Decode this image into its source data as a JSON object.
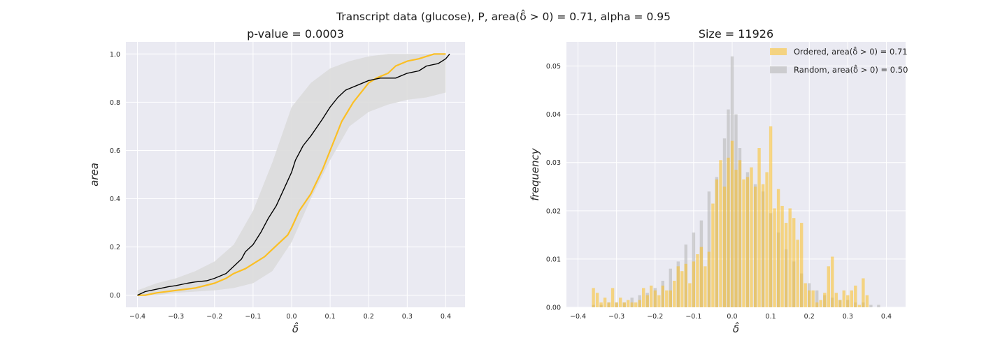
{
  "figure": {
    "suptitle": "Transcript data (glucose), P, area(δ̂ > 0) = 0.71, alpha = 0.95"
  },
  "colors": {
    "background": "#eaeaf2",
    "grid": "#ffffff",
    "ordered": "#fbbf24",
    "random": "#b8b8b8",
    "band": "#dcdcdc",
    "median_line": "#000000"
  },
  "chart_data": [
    {
      "type": "line",
      "title": "p-value = 0.0003",
      "xlabel": "δ̂",
      "ylabel": "area",
      "xlim": [
        -0.43,
        0.45
      ],
      "ylim": [
        -0.05,
        1.05
      ],
      "grid": true,
      "xticks": [
        -0.4,
        -0.3,
        -0.2,
        -0.1,
        0.0,
        0.1,
        0.2,
        0.3,
        0.4
      ],
      "xtick_labels": [
        "−0.4",
        "−0.3",
        "−0.2",
        "−0.1",
        "0.0",
        "0.1",
        "0.2",
        "0.3",
        "0.4"
      ],
      "yticks": [
        0.0,
        0.2,
        0.4,
        0.6,
        0.8,
        1.0
      ],
      "ytick_labels": [
        "0.0",
        "0.2",
        "0.4",
        "0.6",
        "0.8",
        "1.0"
      ],
      "band": {
        "x": [
          -0.4,
          -0.35,
          -0.3,
          -0.25,
          -0.2,
          -0.15,
          -0.1,
          -0.05,
          0.0,
          0.05,
          0.1,
          0.15,
          0.2,
          0.25,
          0.3,
          0.35,
          0.4
        ],
        "upper": [
          0.02,
          0.05,
          0.07,
          0.1,
          0.14,
          0.21,
          0.35,
          0.55,
          0.78,
          0.88,
          0.94,
          0.97,
          0.99,
          1.0,
          1.0,
          1.0,
          1.0
        ],
        "lower": [
          0.0,
          0.0,
          0.01,
          0.015,
          0.02,
          0.03,
          0.05,
          0.1,
          0.22,
          0.4,
          0.56,
          0.7,
          0.76,
          0.79,
          0.81,
          0.82,
          0.84
        ]
      },
      "series": [
        {
          "name": "",
          "color": "#fbbf24",
          "x": [
            -0.4,
            -0.38,
            -0.35,
            -0.3,
            -0.25,
            -0.2,
            -0.17,
            -0.15,
            -0.12,
            -0.1,
            -0.07,
            -0.05,
            -0.03,
            -0.01,
            0.0,
            0.02,
            0.05,
            0.08,
            0.1,
            0.13,
            0.16,
            0.2,
            0.22,
            0.25,
            0.27,
            0.3,
            0.33,
            0.35,
            0.37,
            0.4
          ],
          "y": [
            0.0,
            0.0,
            0.01,
            0.02,
            0.03,
            0.05,
            0.07,
            0.09,
            0.11,
            0.13,
            0.16,
            0.19,
            0.22,
            0.25,
            0.28,
            0.35,
            0.42,
            0.52,
            0.6,
            0.72,
            0.8,
            0.88,
            0.9,
            0.92,
            0.95,
            0.97,
            0.98,
            0.99,
            1.0,
            1.0
          ]
        },
        {
          "name": "",
          "color": "#000000",
          "x": [
            -0.4,
            -0.38,
            -0.35,
            -0.32,
            -0.3,
            -0.27,
            -0.25,
            -0.22,
            -0.2,
            -0.17,
            -0.15,
            -0.13,
            -0.12,
            -0.1,
            -0.08,
            -0.06,
            -0.04,
            -0.02,
            0.0,
            0.01,
            0.03,
            0.05,
            0.08,
            0.1,
            0.12,
            0.14,
            0.17,
            0.2,
            0.23,
            0.27,
            0.3,
            0.33,
            0.35,
            0.38,
            0.4,
            0.41
          ],
          "y": [
            0.0,
            0.015,
            0.025,
            0.035,
            0.04,
            0.05,
            0.055,
            0.06,
            0.07,
            0.09,
            0.12,
            0.15,
            0.18,
            0.21,
            0.26,
            0.32,
            0.37,
            0.44,
            0.51,
            0.56,
            0.62,
            0.66,
            0.73,
            0.78,
            0.82,
            0.85,
            0.87,
            0.89,
            0.9,
            0.9,
            0.92,
            0.93,
            0.95,
            0.96,
            0.98,
            1.0
          ]
        }
      ]
    },
    {
      "type": "bar",
      "title": "Size = 11926",
      "xlabel": "δ̂",
      "ylabel": "frequency",
      "xlim": [
        -0.43,
        0.45
      ],
      "ylim": [
        0.0,
        0.055
      ],
      "grid": true,
      "legend_position": "top-right",
      "xticks": [
        -0.4,
        -0.3,
        -0.2,
        -0.1,
        0.0,
        0.1,
        0.2,
        0.3,
        0.4
      ],
      "xtick_labels": [
        "−0.4",
        "−0.3",
        "−0.2",
        "−0.1",
        "0.0",
        "0.1",
        "0.2",
        "0.3",
        "0.4"
      ],
      "yticks": [
        0.0,
        0.01,
        0.02,
        0.03,
        0.04,
        0.05
      ],
      "ytick_labels": [
        "0.00",
        "0.01",
        "0.02",
        "0.03",
        "0.04",
        "0.05"
      ],
      "bin_width": 0.008,
      "series": [
        {
          "name": "Ordered, area(δ̂ > 0) = 0.71",
          "color": "#fbbf24",
          "x": [
            -0.36,
            -0.35,
            -0.34,
            -0.33,
            -0.32,
            -0.31,
            -0.3,
            -0.29,
            -0.28,
            -0.27,
            -0.26,
            -0.25,
            -0.24,
            -0.23,
            -0.22,
            -0.21,
            -0.2,
            -0.19,
            -0.18,
            -0.17,
            -0.16,
            -0.15,
            -0.14,
            -0.13,
            -0.12,
            -0.11,
            -0.1,
            -0.09,
            -0.08,
            -0.07,
            -0.06,
            -0.05,
            -0.04,
            -0.03,
            -0.02,
            -0.01,
            0.0,
            0.01,
            0.02,
            0.03,
            0.04,
            0.05,
            0.06,
            0.07,
            0.08,
            0.09,
            0.1,
            0.11,
            0.12,
            0.13,
            0.14,
            0.15,
            0.16,
            0.17,
            0.18,
            0.19,
            0.2,
            0.21,
            0.22,
            0.23,
            0.24,
            0.25,
            0.26,
            0.27,
            0.28,
            0.29,
            0.3,
            0.31,
            0.32,
            0.33,
            0.34,
            0.35
          ],
          "values": [
            0.004,
            0.003,
            0.001,
            0.002,
            0.001,
            0.004,
            0.001,
            0.002,
            0.001,
            0.0015,
            0.001,
            0.001,
            0.0015,
            0.004,
            0.0025,
            0.0045,
            0.0035,
            0.0025,
            0.0045,
            0.0035,
            0.0035,
            0.0055,
            0.0085,
            0.0075,
            0.009,
            0.005,
            0.0095,
            0.011,
            0.0125,
            0.0085,
            0.0115,
            0.0215,
            0.0265,
            0.0305,
            0.025,
            0.031,
            0.0345,
            0.0285,
            0.0305,
            0.0265,
            0.027,
            0.029,
            0.025,
            0.033,
            0.0255,
            0.028,
            0.0375,
            0.0205,
            0.0245,
            0.021,
            0.0175,
            0.0205,
            0.0185,
            0.014,
            0.0175,
            0.005,
            0.0035,
            0.0035,
            0.001,
            0.0015,
            0.003,
            0.0085,
            0.0105,
            0.003,
            0.0015,
            0.0035,
            0.0025,
            0.0035,
            0.0045,
            0.0005,
            0.006,
            0.0025
          ]
        },
        {
          "name": "Random, area(δ̂ > 0) = 0.50",
          "color": "#b8b8b8",
          "x": [
            -0.4,
            -0.38,
            -0.36,
            -0.34,
            -0.32,
            -0.3,
            -0.28,
            -0.26,
            -0.24,
            -0.22,
            -0.2,
            -0.18,
            -0.16,
            -0.14,
            -0.12,
            -0.1,
            -0.08,
            -0.06,
            -0.04,
            -0.02,
            -0.01,
            0.0,
            0.01,
            0.02,
            0.04,
            0.06,
            0.08,
            0.1,
            0.12,
            0.14,
            0.16,
            0.18,
            0.2,
            0.22,
            0.24,
            0.26,
            0.28,
            0.3,
            0.32,
            0.34,
            0.36,
            0.38,
            0.4
          ],
          "values": [
            0.0,
            0.0,
            0.0005,
            0.0005,
            0.001,
            0.001,
            0.001,
            0.002,
            0.0025,
            0.003,
            0.004,
            0.0055,
            0.008,
            0.0095,
            0.013,
            0.0155,
            0.018,
            0.024,
            0.027,
            0.035,
            0.041,
            0.052,
            0.04,
            0.033,
            0.028,
            0.0255,
            0.024,
            0.0195,
            0.0155,
            0.012,
            0.0095,
            0.007,
            0.005,
            0.0035,
            0.0025,
            0.002,
            0.0015,
            0.0015,
            0.001,
            0.001,
            0.0005,
            0.0005,
            0.0
          ]
        }
      ]
    }
  ]
}
